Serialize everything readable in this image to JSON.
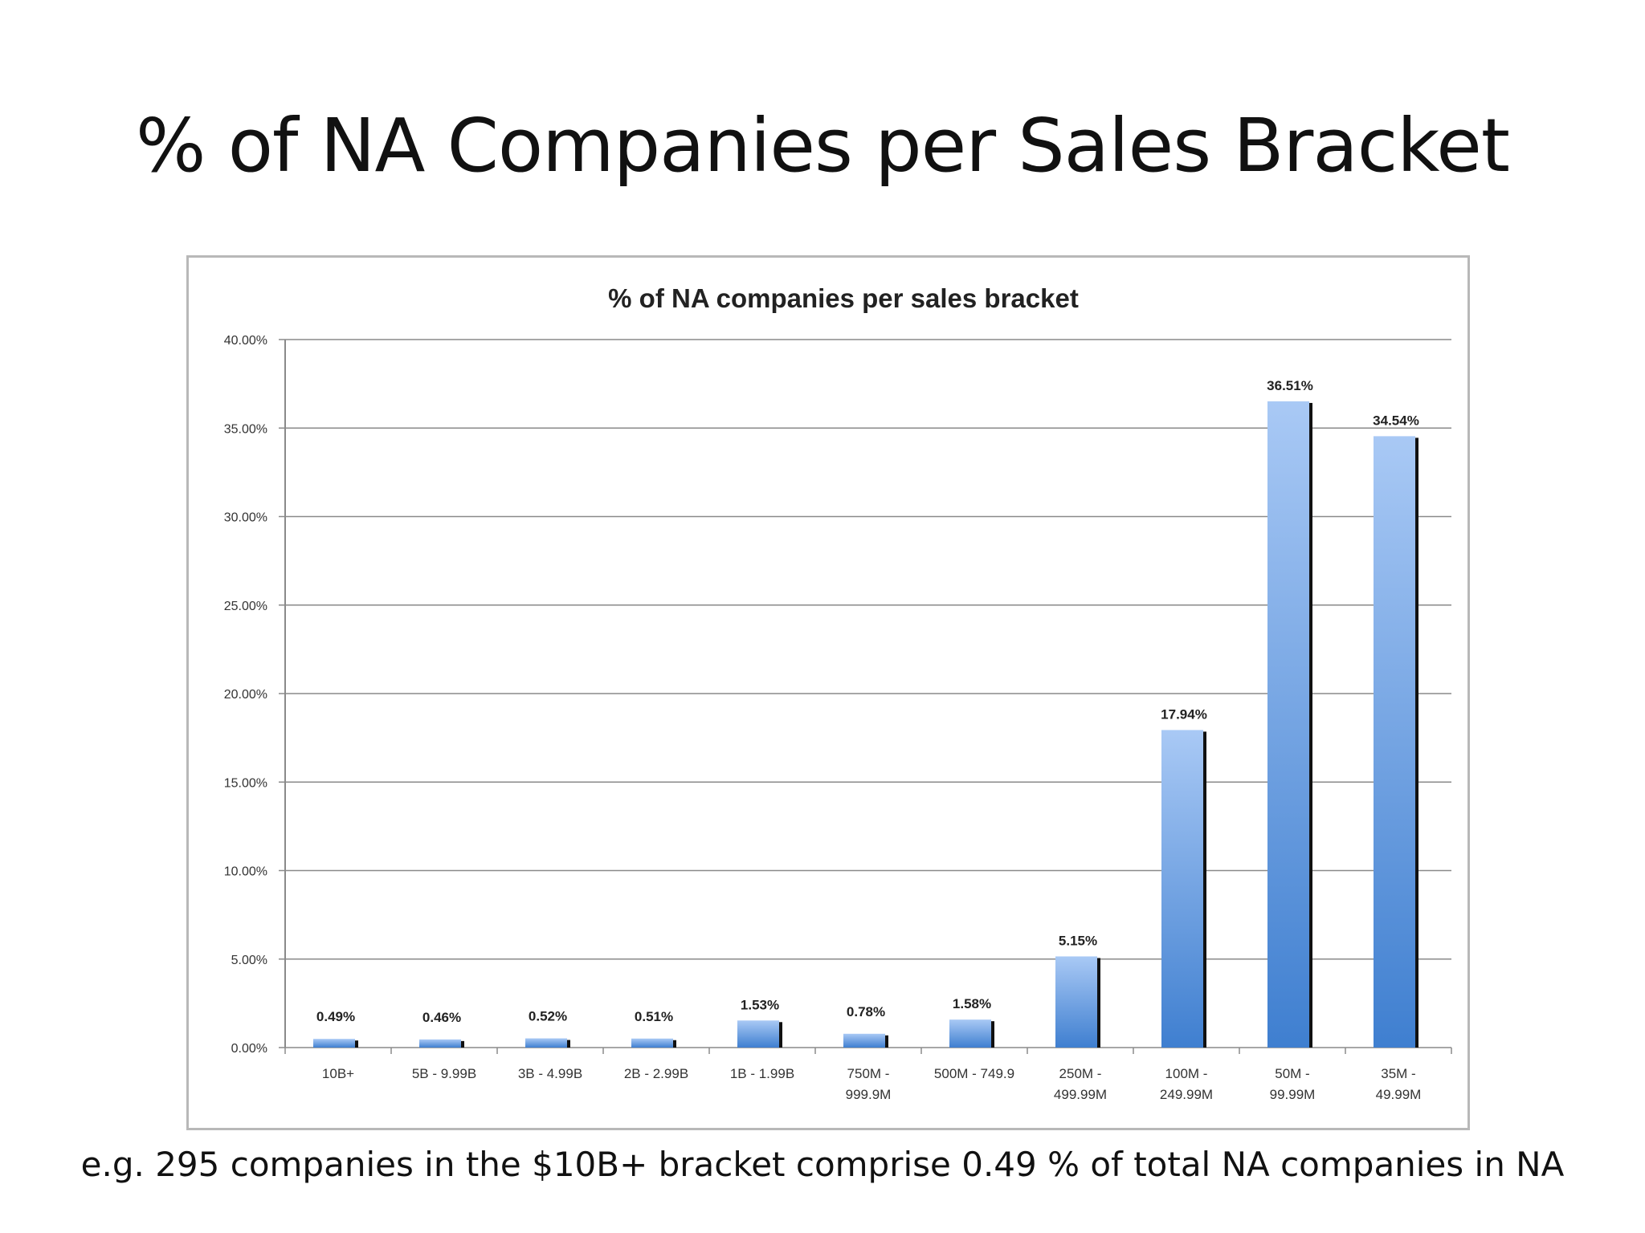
{
  "slide": {
    "title": "% of NA Companies per Sales Bracket",
    "caption": "e.g. 295 companies in the $10B+ bracket comprise 0.49 % of total NA companies in NA"
  },
  "chart_data": {
    "type": "bar",
    "title": "% of NA companies per  sales bracket",
    "xlabel": "",
    "ylabel": "",
    "categories": [
      [
        "10B+"
      ],
      [
        "5B  - 9.99B"
      ],
      [
        "3B - 4.99B"
      ],
      [
        "2B - 2.99B"
      ],
      [
        "1B - 1.99B"
      ],
      [
        "750M -",
        "999.9M"
      ],
      [
        "500M - 749.9"
      ],
      [
        "250M -",
        "499.99M"
      ],
      [
        "100M -",
        "249.99M"
      ],
      [
        "50M -",
        "99.99M"
      ],
      [
        "35M -",
        "49.99M"
      ]
    ],
    "values": [
      0.49,
      0.46,
      0.52,
      0.51,
      1.53,
      0.78,
      1.58,
      5.15,
      17.94,
      36.51,
      34.54
    ],
    "data_labels": [
      "0.49%",
      "0.46%",
      "0.52%",
      "0.51%",
      "1.53%",
      "0.78%",
      "1.58%",
      "5.15%",
      "17.94%",
      "36.51%",
      "34.54%"
    ],
    "ylim": [
      0,
      40
    ],
    "yticks": [
      0,
      5,
      10,
      15,
      20,
      25,
      30,
      35,
      40
    ],
    "ytick_labels": [
      "0.00%",
      "5.00%",
      "10.00%",
      "15.00%",
      "20.00%",
      "25.00%",
      "30.00%",
      "35.00%",
      "40.00%"
    ],
    "grid": true,
    "legend": "none",
    "colors": {
      "bar_top": "#a9c9f5",
      "bar_bottom": "#3f7fd0",
      "bar_shadow": "#111111",
      "grid": "#8a8a8a",
      "axis": "#8a8a8a"
    }
  }
}
